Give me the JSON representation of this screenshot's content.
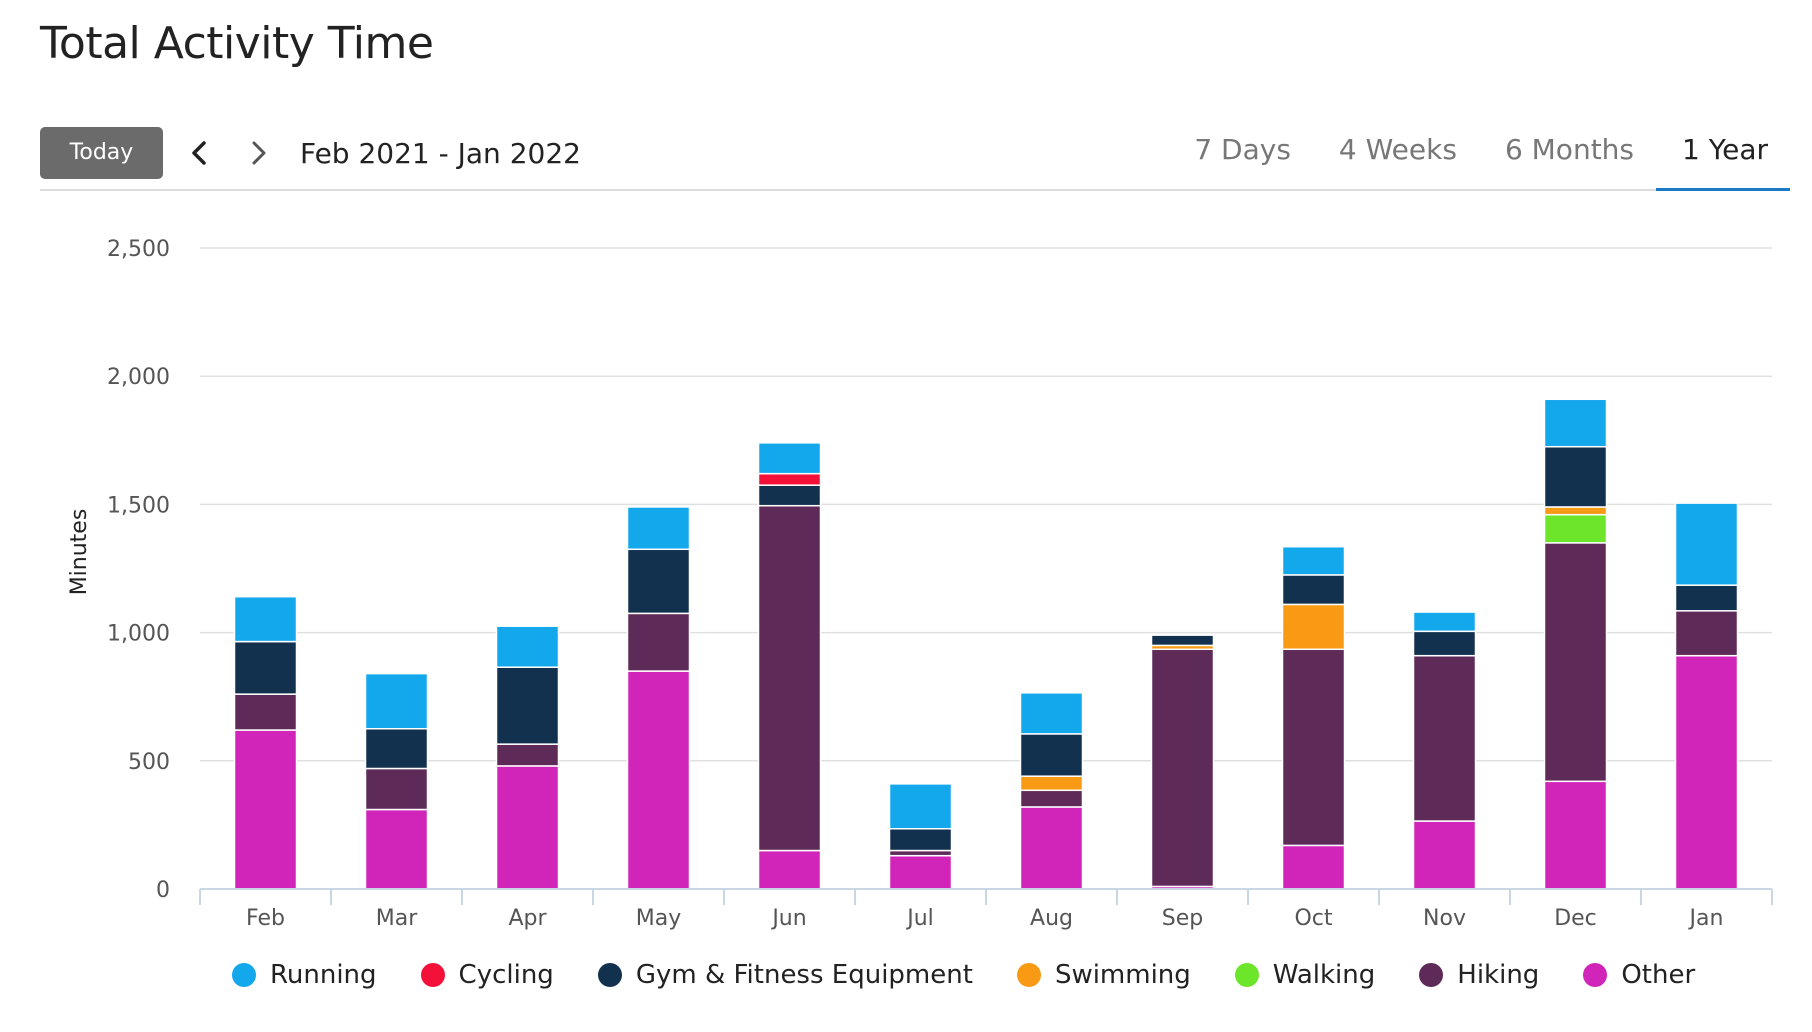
{
  "header": {
    "title": "Total Activity Time"
  },
  "toolbar": {
    "today_label": "Today",
    "prev_icon": "chevron-left-icon",
    "next_icon": "chevron-right-icon",
    "date_range": "Feb 2021 - Jan 2022",
    "range_tabs": [
      {
        "label": "7 Days",
        "active": false
      },
      {
        "label": "4 Weeks",
        "active": false
      },
      {
        "label": "6 Months",
        "active": false
      },
      {
        "label": "1 Year",
        "active": true
      }
    ]
  },
  "colors": {
    "accent": "#1a7bc4",
    "gridline": "#e0e0e0",
    "axis": "#c9d6e3"
  },
  "chart_data": {
    "type": "bar",
    "stacked": true,
    "title": "Total Activity Time",
    "xlabel": "",
    "ylabel": "Minutes",
    "ylim": [
      0,
      2500
    ],
    "yticks": [
      0,
      500,
      1000,
      1500,
      2000,
      2500
    ],
    "ytick_labels": [
      "0",
      "500",
      "1,000",
      "1,500",
      "2,000",
      "2,500"
    ],
    "grid": true,
    "legend_position": "bottom",
    "categories": [
      "Feb",
      "Mar",
      "Apr",
      "May",
      "Jun",
      "Jul",
      "Aug",
      "Sep",
      "Oct",
      "Nov",
      "Dec",
      "Jan"
    ],
    "series": [
      {
        "name": "Other",
        "color": "#d025b8",
        "values": [
          620,
          310,
          480,
          850,
          150,
          130,
          320,
          10,
          170,
          265,
          420,
          910
        ]
      },
      {
        "name": "Hiking",
        "color": "#5e2a58",
        "values": [
          140,
          160,
          85,
          225,
          1345,
          20,
          65,
          925,
          765,
          645,
          930,
          175
        ]
      },
      {
        "name": "Walking",
        "color": "#6de52a",
        "values": [
          0,
          0,
          0,
          0,
          0,
          0,
          0,
          0,
          0,
          0,
          110,
          0
        ]
      },
      {
        "name": "Swimming",
        "color": "#f89a14",
        "values": [
          0,
          0,
          0,
          0,
          0,
          0,
          55,
          15,
          175,
          0,
          30,
          0
        ]
      },
      {
        "name": "Gym & Fitness Equipment",
        "color": "#12314f",
        "values": [
          205,
          155,
          300,
          250,
          80,
          85,
          165,
          40,
          115,
          95,
          235,
          100
        ]
      },
      {
        "name": "Cycling",
        "color": "#f3113a",
        "values": [
          0,
          0,
          0,
          0,
          45,
          0,
          0,
          0,
          0,
          0,
          0,
          0
        ]
      },
      {
        "name": "Running",
        "color": "#13a7ec",
        "values": [
          175,
          215,
          160,
          165,
          120,
          175,
          160,
          0,
          110,
          75,
          185,
          320
        ]
      }
    ],
    "legend_order": [
      "Running",
      "Cycling",
      "Gym & Fitness Equipment",
      "Swimming",
      "Walking",
      "Hiking",
      "Other"
    ]
  }
}
